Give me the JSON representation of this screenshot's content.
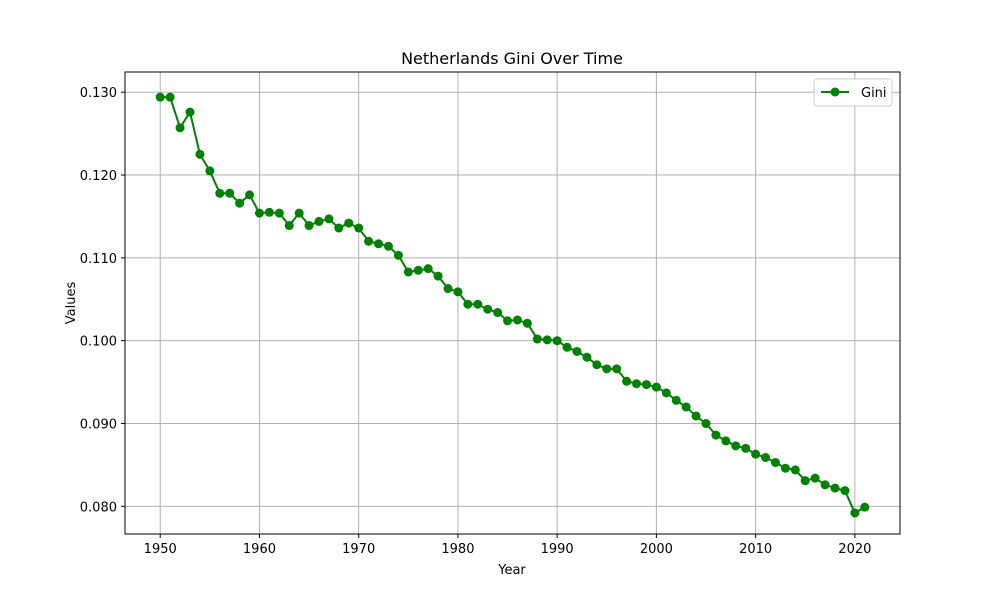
{
  "chart_data": {
    "type": "line",
    "title": "Netherlands Gini Over Time",
    "xlabel": "Year",
    "ylabel": "Values",
    "xlim": [
      1946.45,
      2024.55
    ],
    "ylim": [
      0.07666,
      0.13244
    ],
    "xticks": [
      1950,
      1960,
      1970,
      1980,
      1990,
      2000,
      2010,
      2020
    ],
    "yticks": [
      0.08,
      0.09,
      0.1,
      0.11,
      0.12,
      0.13
    ],
    "ytick_labels": [
      "0.080",
      "0.090",
      "0.100",
      "0.110",
      "0.120",
      "0.130"
    ],
    "grid": true,
    "legend": "top-right",
    "series": [
      {
        "name": "Gini",
        "color": "#008000",
        "marker": "circle",
        "x": [
          1950,
          1951,
          1952,
          1953,
          1954,
          1955,
          1956,
          1957,
          1958,
          1959,
          1960,
          1961,
          1962,
          1963,
          1964,
          1965,
          1966,
          1967,
          1968,
          1969,
          1970,
          1971,
          1972,
          1973,
          1974,
          1975,
          1976,
          1977,
          1978,
          1979,
          1980,
          1981,
          1982,
          1983,
          1984,
          1985,
          1986,
          1987,
          1988,
          1989,
          1990,
          1991,
          1992,
          1993,
          1994,
          1995,
          1996,
          1997,
          1998,
          1999,
          2000,
          2001,
          2002,
          2003,
          2004,
          2005,
          2006,
          2007,
          2008,
          2009,
          2010,
          2011,
          2012,
          2013,
          2014,
          2015,
          2016,
          2017,
          2018,
          2019,
          2020,
          2021
        ],
        "values": [
          0.1294,
          0.1294,
          0.1257,
          0.1276,
          0.1225,
          0.1205,
          0.1178,
          0.1178,
          0.1166,
          0.1176,
          0.1154,
          0.1155,
          0.1154,
          0.1139,
          0.1154,
          0.1139,
          0.1144,
          0.1147,
          0.1136,
          0.1142,
          0.1136,
          0.112,
          0.1117,
          0.1114,
          0.1103,
          0.1083,
          0.1085,
          0.1087,
          0.1078,
          0.1063,
          0.1059,
          0.1044,
          0.1044,
          0.1038,
          0.1034,
          0.1024,
          0.1025,
          0.1021,
          0.1002,
          0.1001,
          0.1,
          0.0992,
          0.0987,
          0.098,
          0.0971,
          0.0966,
          0.0966,
          0.0951,
          0.0948,
          0.0947,
          0.0944,
          0.0937,
          0.0928,
          0.092,
          0.0909,
          0.09,
          0.0886,
          0.0879,
          0.0873,
          0.087,
          0.0863,
          0.0859,
          0.0853,
          0.0846,
          0.0844,
          0.0831,
          0.0834,
          0.0826,
          0.0822,
          0.0819,
          0.0792,
          0.0799
        ]
      }
    ]
  }
}
